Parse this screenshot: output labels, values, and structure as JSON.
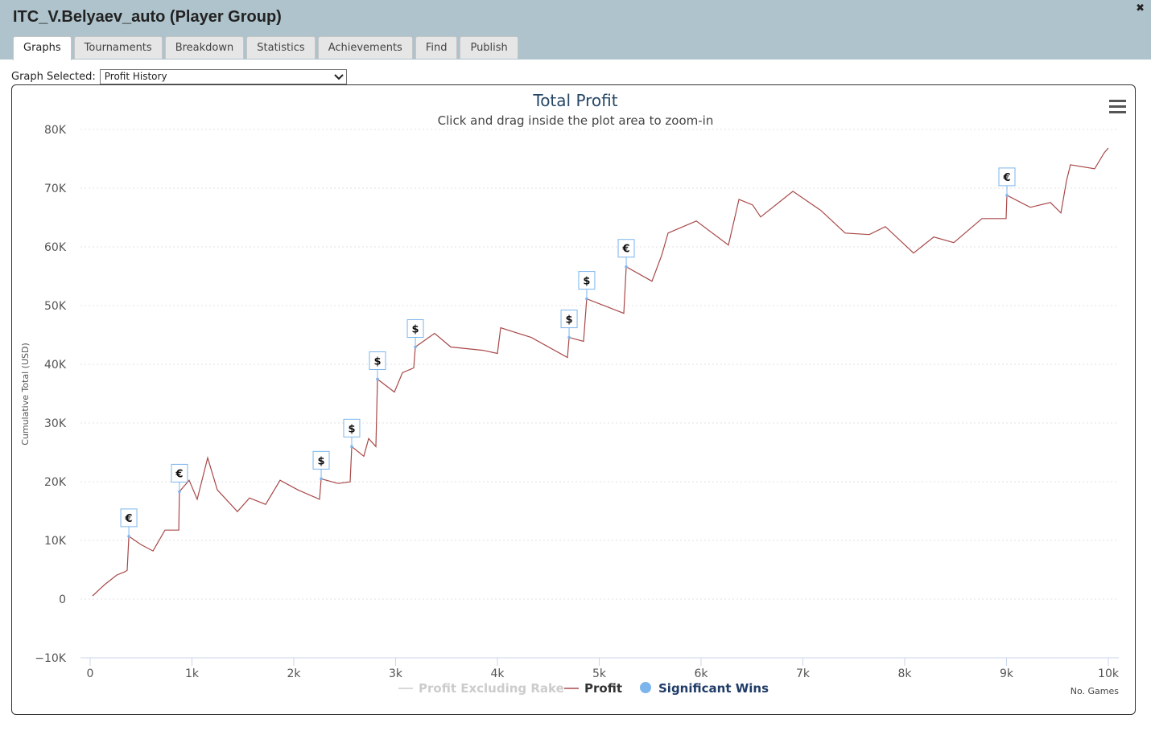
{
  "window": {
    "title": "ITC_V.Belyaev_auto (Player Group)",
    "close": "✖"
  },
  "tabs": [
    "Graphs",
    "Tournaments",
    "Breakdown",
    "Statistics",
    "Achievements",
    "Find",
    "Publish"
  ],
  "active_tab": 0,
  "selector": {
    "label": "Graph Selected:",
    "value": "Profit History"
  },
  "chart_data": {
    "type": "line",
    "title": "Total Profit",
    "subtitle": "Click and drag inside the plot area to zoom-in",
    "ylabel": "Cumulative Total (USD)",
    "xlabel": "No. Games",
    "xlim": [
      0,
      10000
    ],
    "xticks": [
      0,
      {
        "value": 1000,
        "label": "1k"
      },
      {
        "value": 2000,
        "label": "2k"
      },
      {
        "value": 3000,
        "label": "3k"
      },
      {
        "value": 4000,
        "label": "4k"
      },
      {
        "value": 5000,
        "label": "5k"
      },
      {
        "value": 6000,
        "label": "6k"
      },
      {
        "value": 7000,
        "label": "7k"
      },
      {
        "value": 8000,
        "label": "8k"
      },
      {
        "value": 9000,
        "label": "9k"
      },
      {
        "value": 10000,
        "label": "10k"
      }
    ],
    "ylim": [
      -10000,
      80000
    ],
    "yticks": [
      {
        "value": -10000,
        "label": "−10K"
      },
      0,
      {
        "value": 10000,
        "label": "10K"
      },
      {
        "value": 20000,
        "label": "20K"
      },
      {
        "value": 30000,
        "label": "30K"
      },
      {
        "value": 40000,
        "label": "40K"
      },
      {
        "value": 50000,
        "label": "50K"
      },
      {
        "value": 60000,
        "label": "60K"
      },
      {
        "value": 70000,
        "label": "70K"
      },
      {
        "value": 80000,
        "label": "80K"
      }
    ],
    "grid": true,
    "series": [
      {
        "name": "Profit Excluding Rake",
        "color": "#cccccc",
        "hidden": true,
        "x": [],
        "values": []
      },
      {
        "name": "Profit",
        "color": "#a84848",
        "x": [
          24,
          142,
          261,
          340,
          364,
          380,
          498,
          617,
          735,
          870,
          877,
          972,
          1051,
          1154,
          1249,
          1447,
          1565,
          1723,
          1866,
          2040,
          2253,
          2269,
          2435,
          2553,
          2569,
          2688,
          2735,
          2806,
          2822,
          2988,
          3067,
          3178,
          3194,
          3383,
          3542,
          3858,
          4000,
          4032,
          4332,
          4688,
          4704,
          4846,
          4877,
          5241,
          5265,
          5518,
          5613,
          5676,
          5953,
          6269,
          6372,
          6506,
          6585,
          6902,
          7178,
          7415,
          7652,
          7810,
          8087,
          8285,
          8482,
          8759,
          8996,
          9004,
          9233,
          9431,
          9534,
          9589,
          9628,
          9866,
          9960,
          10000
        ],
        "values": [
          550,
          2460,
          4100,
          4650,
          4900,
          10700,
          9300,
          8200,
          11760,
          11760,
          18300,
          20240,
          17000,
          24070,
          18600,
          14900,
          17230,
          16140,
          20240,
          18600,
          17000,
          20500,
          19700,
          19970,
          25980,
          24340,
          27350,
          25980,
          37470,
          35280,
          38560,
          39380,
          42940,
          45270,
          42940,
          42390,
          41850,
          46220,
          44580,
          41160,
          44580,
          43900,
          51150,
          48680,
          56610,
          54150,
          58530,
          62360,
          64410,
          60310,
          68100,
          67150,
          65100,
          69470,
          66190,
          62360,
          62090,
          63450,
          58940,
          61680,
          60720,
          64820,
          64820,
          68780,
          66740,
          67560,
          65780,
          71250,
          73980,
          73300,
          76030,
          76850
        ]
      },
      {
        "name": "Significant Wins",
        "color": "#7cb5ec",
        "x": [
          380,
          877,
          2269,
          2569,
          2822,
          3194,
          4704,
          4877,
          5265,
          9004
        ],
        "values": [
          10700,
          18300,
          20500,
          25980,
          37470,
          42940,
          44580,
          51150,
          56610,
          68780
        ],
        "labels": [
          "€",
          "€",
          "$",
          "$",
          "$",
          "$",
          "$",
          "$",
          "€",
          "€"
        ]
      }
    ]
  }
}
